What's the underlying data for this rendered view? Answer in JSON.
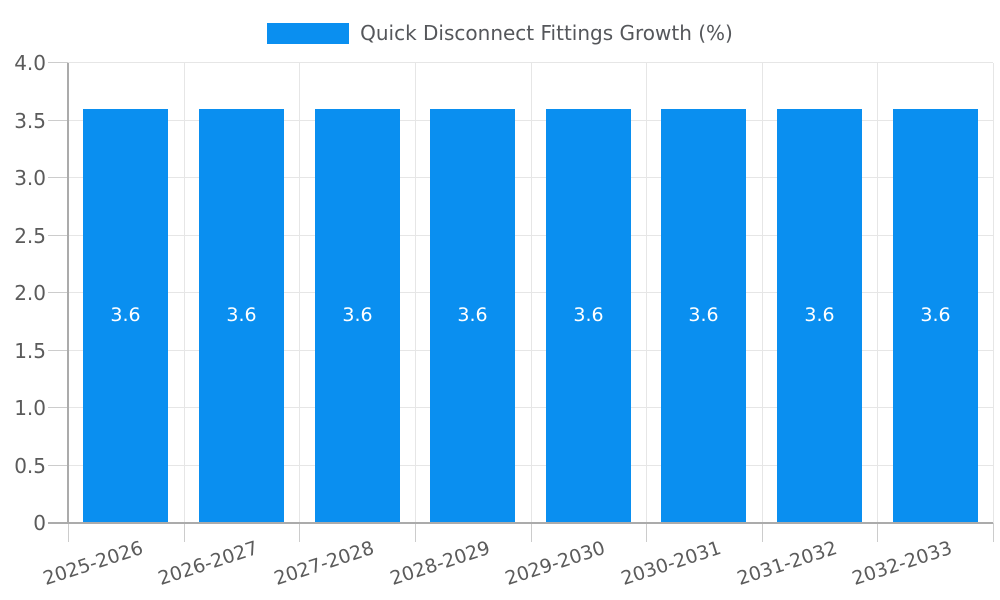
{
  "legend": {
    "label": "Quick Disconnect Fittings Growth (%)"
  },
  "chart_data": {
    "type": "bar",
    "title": "Quick Disconnect Fittings Growth (%)",
    "categories": [
      "2025-2026",
      "2026-2027",
      "2027-2028",
      "2028-2029",
      "2029-2030",
      "2030-2031",
      "2031-2032",
      "2032-2033"
    ],
    "values": [
      3.6,
      3.6,
      3.6,
      3.6,
      3.6,
      3.6,
      3.6,
      3.6
    ],
    "bar_labels": [
      "3.6",
      "3.6",
      "3.6",
      "3.6",
      "3.6",
      "3.6",
      "3.6",
      "3.6"
    ],
    "xlabel": "",
    "ylabel": "",
    "ylim": [
      0,
      4
    ],
    "ytick_step": 0.5,
    "ytick_labels": [
      "0",
      "0.5",
      "1.0",
      "1.5",
      "2.0",
      "2.5",
      "3.0",
      "3.5",
      "4.0"
    ],
    "grid": true,
    "legend_position": "top-center",
    "colors": {
      "bar": "#0a8ff0",
      "grid": "#e6e6e6",
      "axis": "#ababab",
      "tick": "#cccccc",
      "axis_text": "#5b5b5b",
      "legend_text": "#55575b",
      "bar_label_text": "#ffffff",
      "background": "#ffffff"
    }
  }
}
